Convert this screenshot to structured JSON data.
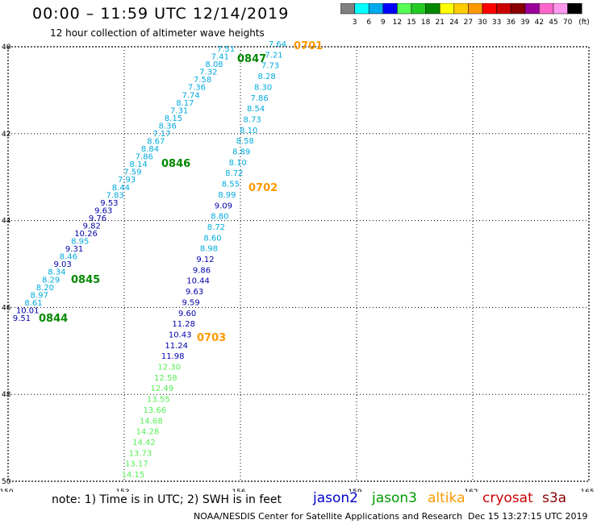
{
  "header": {
    "title": "00:00 – 11:59 UTC 12/14/2019",
    "subtitle": "12 hour collection of altimeter wave heights"
  },
  "colorbar": {
    "labels": [
      "3",
      "6",
      "9",
      "12",
      "15",
      "18",
      "21",
      "24",
      "27",
      "30",
      "33",
      "36",
      "39",
      "42",
      "45",
      "70"
    ],
    "unit": "(ft)",
    "colors": [
      "#808080",
      "#00ffff",
      "#00aaee",
      "#0000ff",
      "#55ff55",
      "#22cc22",
      "#008800",
      "#ffff00",
      "#ffcc00",
      "#ff9900",
      "#ff0000",
      "#cc0000",
      "#880000",
      "#990099",
      "#ff66cc",
      "#ff99ee",
      "#000000"
    ]
  },
  "axes": {
    "lon_ticks": [
      "150",
      "153",
      "156",
      "159",
      "162",
      "165"
    ],
    "lat_ticks": [
      "40",
      "42",
      "44",
      "46",
      "48",
      "50"
    ],
    "lon_range": [
      150,
      165
    ],
    "lat_range": [
      40,
      50
    ]
  },
  "tracks": [
    {
      "satellite": "jason3",
      "times": [
        "0847",
        "0846",
        "0845",
        "0844"
      ],
      "points": [
        [
          "7.51",
          "cyan"
        ],
        [
          "7.41",
          "cyan"
        ],
        [
          "8.08",
          "cyan"
        ],
        [
          "7.32",
          "cyan"
        ],
        [
          "7.58",
          "cyan"
        ],
        [
          "7.36",
          "cyan"
        ],
        [
          "7.74",
          "cyan"
        ],
        [
          "8.17",
          "cyan"
        ],
        [
          "7.31",
          "cyan"
        ],
        [
          "8.15",
          "cyan"
        ],
        [
          "8.36",
          "cyan"
        ],
        [
          "7.17",
          "cyan"
        ],
        [
          "8.67",
          "cyan"
        ],
        [
          "8.84",
          "cyan"
        ],
        [
          "7.86",
          "cyan"
        ],
        [
          "8.14",
          "cyan"
        ],
        [
          "7.59",
          "cyan"
        ],
        [
          "7.93",
          "cyan"
        ],
        [
          "8.44",
          "cyan"
        ],
        [
          "7.83",
          "cyan"
        ],
        [
          "9.53",
          "blue"
        ],
        [
          "9.63",
          "blue"
        ],
        [
          "9.76",
          "blue"
        ],
        [
          "9.82",
          "blue"
        ],
        [
          "10.26",
          "blue"
        ],
        [
          "8.95",
          "cyan"
        ],
        [
          "9.31",
          "blue"
        ],
        [
          "8.46",
          "cyan"
        ],
        [
          "9.03",
          "blue"
        ],
        [
          "8.34",
          "cyan"
        ],
        [
          "8.29",
          "cyan"
        ],
        [
          "8.20",
          "cyan"
        ],
        [
          "8.97",
          "cyan"
        ],
        [
          "8.61",
          "cyan"
        ],
        [
          "10.01",
          "blue"
        ],
        [
          "9.51",
          "blue"
        ]
      ]
    },
    {
      "satellite": "altika",
      "times": [
        "0701",
        "0702",
        "0703"
      ],
      "points": [
        [
          "7.64",
          "cyan"
        ],
        [
          "7.21",
          "cyan"
        ],
        [
          "7.73",
          "cyan"
        ],
        [
          "8.28",
          "cyan"
        ],
        [
          "8.30",
          "cyan"
        ],
        [
          "7.86",
          "cyan"
        ],
        [
          "8.54",
          "cyan"
        ],
        [
          "8.73",
          "cyan"
        ],
        [
          "8.10",
          "cyan"
        ],
        [
          "8.58",
          "cyan"
        ],
        [
          "8.89",
          "cyan"
        ],
        [
          "8.10",
          "cyan"
        ],
        [
          "8.72",
          "cyan"
        ],
        [
          "8.55",
          "cyan"
        ],
        [
          "8.99",
          "cyan"
        ],
        [
          "9.09",
          "blue"
        ],
        [
          "8.80",
          "cyan"
        ],
        [
          "8.72",
          "cyan"
        ],
        [
          "8.60",
          "cyan"
        ],
        [
          "8.98",
          "cyan"
        ],
        [
          "9.12",
          "blue"
        ],
        [
          "9.86",
          "blue"
        ],
        [
          "10.44",
          "blue"
        ],
        [
          "9.63",
          "blue"
        ],
        [
          "9.59",
          "blue"
        ],
        [
          "9.60",
          "blue"
        ],
        [
          "11.28",
          "blue"
        ],
        [
          "10.43",
          "blue"
        ],
        [
          "11.24",
          "blue"
        ],
        [
          "11.98",
          "blue"
        ],
        [
          "12.30",
          "green"
        ],
        [
          "12.58",
          "green"
        ],
        [
          "12.49",
          "green"
        ],
        [
          "13.55",
          "green"
        ],
        [
          "13.66",
          "green"
        ],
        [
          "14.68",
          "green"
        ],
        [
          "14.28",
          "green"
        ],
        [
          "14.42",
          "green"
        ],
        [
          "13.73",
          "green"
        ],
        [
          "13.17",
          "green"
        ],
        [
          "14.15",
          "green"
        ]
      ]
    }
  ],
  "point_colors": {
    "cyan": "#00aadd",
    "blue": "#0000aa",
    "green": "#55ee55"
  },
  "time_colors": {
    "jason3": "#008800",
    "altika": "#ff9900"
  },
  "footer": {
    "note": "note:  1) Time is in UTC;  2) SWH is in feet",
    "legend": [
      {
        "name": "jason2",
        "color": "#0000cc"
      },
      {
        "name": "jason3",
        "color": "#009900"
      },
      {
        "name": "altika",
        "color": "#ff9900"
      },
      {
        "name": "cryosat",
        "color": "#cc0000"
      },
      {
        "name": "s3a",
        "color": "#880000"
      }
    ],
    "credit": "NOAA/NESDIS Center for Satellite Applications and Research",
    "timestamp": "Dec 15 13:27:15 UTC 2019"
  }
}
